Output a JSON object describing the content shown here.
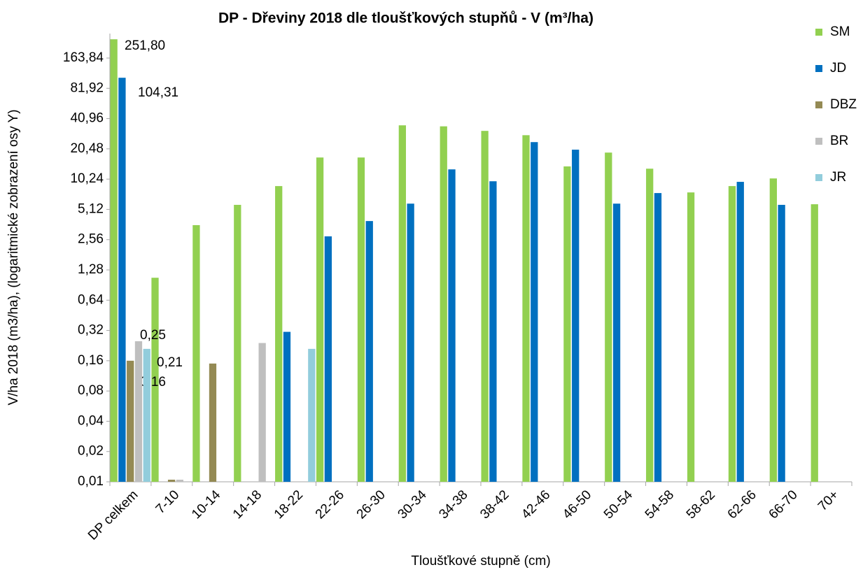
{
  "chart_data": {
    "type": "bar",
    "title": "DP - Dřeviny 2018 dle tloušťkových stupňů - V (m³/ha)",
    "y_label": "V/ha 2018 (m3/ha), (logaritmické zobrazení osy Y)",
    "x_label": "Tloušťkové stupně (cm)",
    "log_scale": true,
    "legend": "right",
    "categories": [
      "DP celkem",
      "7-10",
      "10-14",
      "14-18",
      "18-22",
      "22-26",
      "26-30",
      "30-34",
      "34-38",
      "38-42",
      "42-46",
      "46-50",
      "50-54",
      "54-58",
      "58-62",
      "62-66",
      "66-70",
      "70+"
    ],
    "series": [
      {
        "name": "SM",
        "color": "#92d050",
        "values": [
          251.8,
          1.07,
          3.57,
          5.68,
          8.73,
          16.8,
          16.8,
          35.1,
          34.3,
          30.9,
          28,
          13.7,
          18.8,
          13,
          7.55,
          8.73,
          10.4,
          5.76
        ],
        "value_labels": [
          "251,80",
          null,
          null,
          null,
          null,
          null,
          null,
          null,
          null,
          null,
          null,
          null,
          null,
          null,
          null,
          null,
          null,
          null
        ]
      },
      {
        "name": "JD",
        "color": "#0070c0",
        "values": [
          104.31,
          null,
          null,
          null,
          0.31,
          2.76,
          3.92,
          5.84,
          12.8,
          9.75,
          23.9,
          20.1,
          5.84,
          7.44,
          null,
          9.62,
          5.68,
          null
        ],
        "value_labels": [
          "104,31",
          null,
          null,
          null,
          null,
          null,
          null,
          null,
          null,
          null,
          null,
          null,
          null,
          null,
          null,
          null,
          null,
          null
        ]
      },
      {
        "name": "DBZ",
        "color": "#948a54",
        "values": [
          0.16,
          0.01,
          0.15,
          null,
          null,
          null,
          null,
          null,
          null,
          null,
          null,
          null,
          null,
          null,
          null,
          null,
          null,
          null
        ],
        "value_labels": [
          "0,16",
          null,
          null,
          null,
          null,
          null,
          null,
          null,
          null,
          null,
          null,
          null,
          null,
          null,
          null,
          null,
          null,
          null
        ]
      },
      {
        "name": "BR",
        "color": "#bfbfbf",
        "values": [
          0.25,
          0.01,
          null,
          0.24,
          null,
          null,
          null,
          null,
          null,
          null,
          null,
          null,
          null,
          null,
          null,
          null,
          null,
          null
        ],
        "value_labels": [
          "0,25",
          null,
          null,
          null,
          null,
          null,
          null,
          null,
          null,
          null,
          null,
          null,
          null,
          null,
          null,
          null,
          null,
          null
        ]
      },
      {
        "name": "JR",
        "color": "#92cddc",
        "values": [
          0.21,
          null,
          null,
          null,
          0.21,
          null,
          null,
          null,
          null,
          null,
          null,
          null,
          null,
          null,
          null,
          null,
          null,
          null
        ],
        "value_labels": [
          "0,21",
          null,
          null,
          null,
          null,
          null,
          null,
          null,
          null,
          null,
          null,
          null,
          null,
          null,
          null,
          null,
          null,
          null
        ]
      }
    ],
    "ylim": [
      0.01,
      287
    ],
    "yticks": [
      {
        "value": 0.01,
        "label": "0,01"
      },
      {
        "value": 0.02,
        "label": "0,02"
      },
      {
        "value": 0.04,
        "label": "0,04"
      },
      {
        "value": 0.08,
        "label": "0,08"
      },
      {
        "value": 0.16,
        "label": "0,16"
      },
      {
        "value": 0.32,
        "label": "0,32"
      },
      {
        "value": 0.64,
        "label": "0,64"
      },
      {
        "value": 1.28,
        "label": "1,28"
      },
      {
        "value": 2.56,
        "label": "2,56"
      },
      {
        "value": 5.12,
        "label": "5,12"
      },
      {
        "value": 10.24,
        "label": "10,24"
      },
      {
        "value": 20.48,
        "label": "20,48"
      },
      {
        "value": 40.96,
        "label": "40,96"
      },
      {
        "value": 81.92,
        "label": "81,92"
      },
      {
        "value": 163.84,
        "label": "163,84"
      }
    ],
    "grid": false
  }
}
